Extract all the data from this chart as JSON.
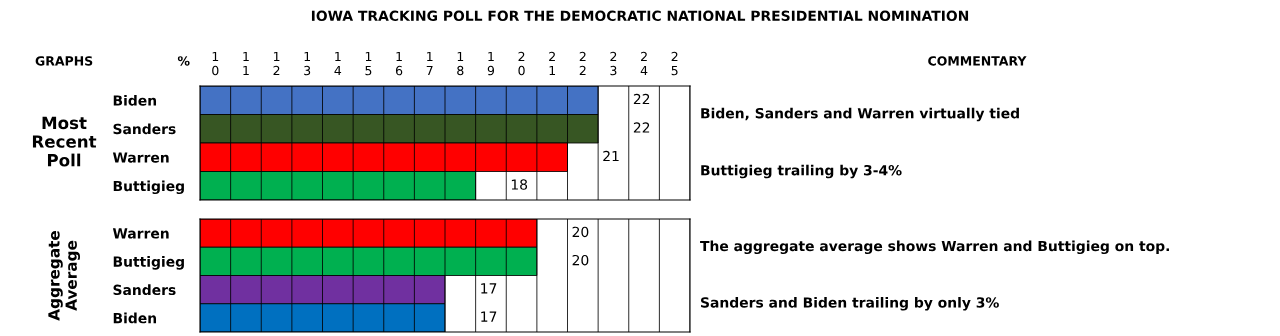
{
  "chart_data": [
    {
      "type": "bar",
      "orientation": "horizontal",
      "title": "IOWA TRACKING POLL FOR THE DEMOCRATIC NATIONAL PRESIDENTIAL NOMINATION",
      "ylabel": "Most Recent Poll",
      "categories": [
        "Biden",
        "Sanders",
        "Warren",
        "Buttigieg"
      ],
      "values": [
        22,
        22,
        21,
        18
      ],
      "colors": [
        "#4472c4",
        "#375623",
        "#ff0000",
        "#00b050"
      ],
      "data_labels": true,
      "grid": "x",
      "legend": false,
      "xlim": [
        9,
        25
      ],
      "xticks": [
        {
          "value": 9.5,
          "label": "10"
        },
        {
          "value": 10.5,
          "label": "11"
        },
        {
          "value": 11.5,
          "label": "12"
        },
        {
          "value": 12.5,
          "label": "13"
        },
        {
          "value": 13.5,
          "label": "14"
        },
        {
          "value": 14.5,
          "label": "15"
        },
        {
          "value": 15.5,
          "label": "16"
        },
        {
          "value": 16.5,
          "label": "17"
        },
        {
          "value": 17.5,
          "label": "18"
        },
        {
          "value": 18.5,
          "label": "19"
        },
        {
          "value": 19.5,
          "label": "20"
        },
        {
          "value": 20.5,
          "label": "21"
        },
        {
          "value": 21.5,
          "label": "22"
        },
        {
          "value": 22.5,
          "label": "23"
        },
        {
          "value": 23.5,
          "label": "24"
        },
        {
          "value": 24.5,
          "label": "25"
        }
      ],
      "annotations": [
        "GRAPHS",
        "%",
        "COMMENTARY",
        "Biden, Sanders and Warren virtually tied",
        "Buttigieg trailing by 3-4%"
      ]
    },
    {
      "type": "bar",
      "orientation": "horizontal",
      "ylabel": "Aggregate Average",
      "categories": [
        "Warren",
        "Buttigieg",
        "Sanders",
        "Biden"
      ],
      "values": [
        20,
        20,
        17,
        17
      ],
      "colors": [
        "#ff0000",
        "#00b050",
        "#7030a0",
        "#0070c0"
      ],
      "data_labels": true,
      "grid": "x",
      "legend": false,
      "tick_labels": "y",
      "xlim": [
        9,
        25
      ],
      "annotations": [
        "The aggregate average shows Warren and Buttigieg on top.",
        "Sanders and Biden trailing by only 3%"
      ]
    }
  ]
}
